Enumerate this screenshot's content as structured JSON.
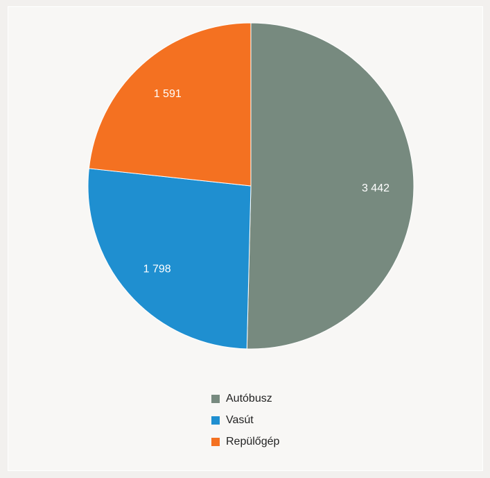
{
  "chart_data": {
    "type": "pie",
    "categories": [
      "Autóbusz",
      "Vasút",
      "Repülőgép"
    ],
    "values": [
      3442,
      1798,
      1591
    ],
    "value_labels": [
      "3 442",
      "1 798",
      "1 591"
    ],
    "colors": [
      "#778a7f",
      "#1f8fd0",
      "#f47121"
    ],
    "start_angle_deg": 0,
    "direction": "clockwise",
    "legend_position": "bottom"
  }
}
